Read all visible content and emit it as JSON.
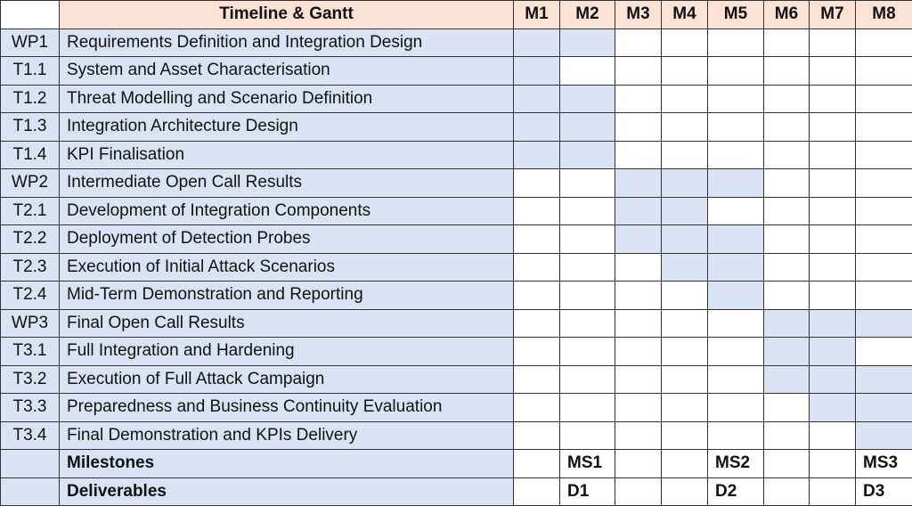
{
  "table": {
    "title": "Timeline & Gantt",
    "months": [
      "M1",
      "M2",
      "M3",
      "M4",
      "M5",
      "M6",
      "M7",
      "M8"
    ],
    "rows": [
      {
        "id": "WP1",
        "name": "Requirements Definition and Integration Design",
        "active": [
          true,
          true,
          false,
          false,
          false,
          false,
          false,
          false
        ]
      },
      {
        "id": "T1.1",
        "name": "System and Asset Characterisation",
        "active": [
          true,
          false,
          false,
          false,
          false,
          false,
          false,
          false
        ]
      },
      {
        "id": "T1.2",
        "name": "Threat Modelling and Scenario Definition",
        "active": [
          true,
          true,
          false,
          false,
          false,
          false,
          false,
          false
        ]
      },
      {
        "id": "T1.3",
        "name": "Integration Architecture Design",
        "active": [
          true,
          true,
          false,
          false,
          false,
          false,
          false,
          false
        ]
      },
      {
        "id": "T1.4",
        "name": "KPI Finalisation",
        "active": [
          true,
          true,
          false,
          false,
          false,
          false,
          false,
          false
        ]
      },
      {
        "id": "WP2",
        "name": "Intermediate Open Call Results",
        "active": [
          false,
          false,
          true,
          true,
          true,
          false,
          false,
          false
        ]
      },
      {
        "id": "T2.1",
        "name": "Development of Integration Components",
        "active": [
          false,
          false,
          true,
          true,
          false,
          false,
          false,
          false
        ]
      },
      {
        "id": "T2.2",
        "name": "Deployment of Detection Probes",
        "active": [
          false,
          false,
          true,
          true,
          true,
          false,
          false,
          false
        ]
      },
      {
        "id": "T2.3",
        "name": "Execution of Initial Attack Scenarios",
        "active": [
          false,
          false,
          false,
          true,
          true,
          false,
          false,
          false
        ]
      },
      {
        "id": "T2.4",
        "name": "Mid-Term Demonstration and Reporting",
        "active": [
          false,
          false,
          false,
          false,
          true,
          false,
          false,
          false
        ]
      },
      {
        "id": "WP3",
        "name": "Final Open Call Results",
        "active": [
          false,
          false,
          false,
          false,
          false,
          true,
          true,
          true
        ]
      },
      {
        "id": "T3.1",
        "name": "Full Integration and Hardening",
        "active": [
          false,
          false,
          false,
          false,
          false,
          true,
          true,
          false
        ]
      },
      {
        "id": "T3.2",
        "name": "Execution of Full Attack Campaign",
        "active": [
          false,
          false,
          false,
          false,
          false,
          true,
          true,
          true
        ]
      },
      {
        "id": "T3.3",
        "name": "Preparedness and Business Continuity Evaluation",
        "active": [
          false,
          false,
          false,
          false,
          false,
          false,
          true,
          true
        ]
      },
      {
        "id": "T3.4",
        "name": "Final Demonstration and KPIs Delivery",
        "active": [
          false,
          false,
          false,
          false,
          false,
          false,
          false,
          true
        ]
      }
    ],
    "summary_rows": [
      {
        "name": "Milestones",
        "cells": [
          null,
          "MS1",
          null,
          null,
          "MS2",
          null,
          null,
          "MS3"
        ]
      },
      {
        "name": "Deliverables",
        "cells": [
          null,
          "D1",
          null,
          null,
          "D2",
          null,
          null,
          "D3"
        ]
      }
    ]
  }
}
